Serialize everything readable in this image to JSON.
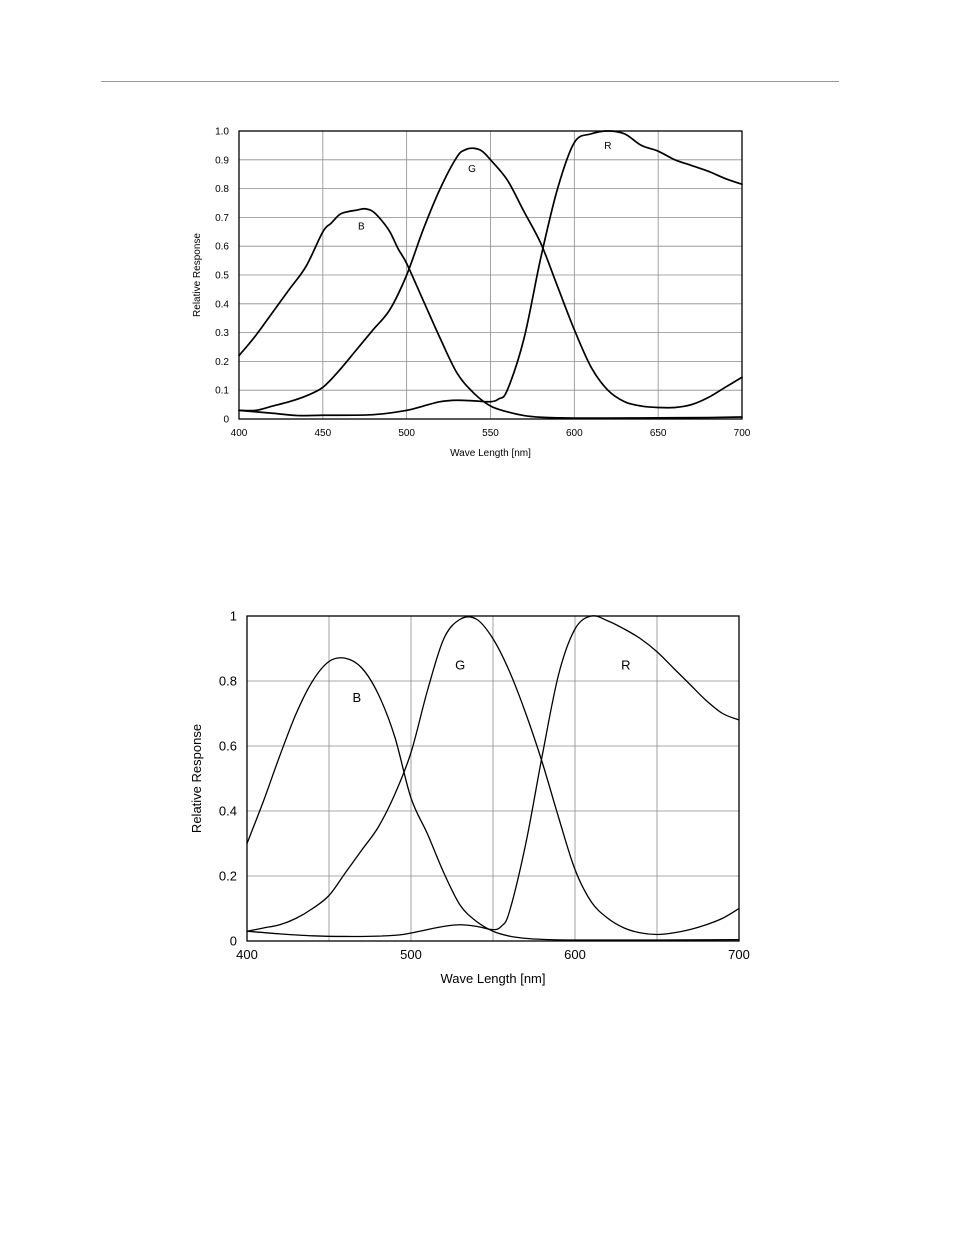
{
  "chart_data": [
    {
      "type": "line",
      "title": "",
      "xlabel": "Wave Length [nm]",
      "ylabel": "Relative Response",
      "xlim": [
        400,
        700
      ],
      "ylim": [
        0,
        1.0
      ],
      "xticks": [
        400,
        450,
        500,
        550,
        600,
        650,
        700
      ],
      "xtick_labels": [
        "400",
        "450",
        "500",
        "550",
        "600",
        "650",
        "700"
      ],
      "yticks": [
        0,
        0.1,
        0.2,
        0.3,
        0.4,
        0.5,
        0.6,
        0.7,
        0.8,
        0.9,
        1.0
      ],
      "ytick_labels": [
        "0",
        "0.1",
        "0.2",
        "0.3",
        "0.4",
        "0.5",
        "0.6",
        "0.7",
        "0.8",
        "0.9",
        "1.0"
      ],
      "grid": true,
      "series": [
        {
          "name": "B",
          "label_at": [
            473,
            0.67
          ],
          "x": [
            400,
            410,
            420,
            430,
            440,
            450,
            455,
            460,
            465,
            470,
            475,
            480,
            485,
            490,
            495,
            500,
            510,
            520,
            530,
            540,
            550,
            560,
            570,
            580,
            590,
            600,
            620,
            650,
            680,
            700
          ],
          "y": [
            0.22,
            0.29,
            0.37,
            0.45,
            0.53,
            0.65,
            0.68,
            0.71,
            0.72,
            0.725,
            0.73,
            0.72,
            0.69,
            0.65,
            0.59,
            0.54,
            0.41,
            0.28,
            0.16,
            0.09,
            0.045,
            0.025,
            0.012,
            0.006,
            0.004,
            0.003,
            0.003,
            0.004,
            0.005,
            0.007
          ]
        },
        {
          "name": "G",
          "label_at": [
            539,
            0.87
          ],
          "x": [
            400,
            410,
            420,
            430,
            440,
            450,
            460,
            470,
            480,
            490,
            500,
            510,
            520,
            530,
            535,
            540,
            545,
            550,
            560,
            570,
            580,
            590,
            600,
            610,
            620,
            630,
            640,
            650,
            660,
            670,
            680,
            690,
            700
          ],
          "y": [
            0.03,
            0.03,
            0.045,
            0.06,
            0.08,
            0.11,
            0.17,
            0.24,
            0.31,
            0.38,
            0.5,
            0.66,
            0.8,
            0.91,
            0.935,
            0.94,
            0.93,
            0.9,
            0.83,
            0.72,
            0.61,
            0.46,
            0.31,
            0.18,
            0.1,
            0.06,
            0.045,
            0.04,
            0.04,
            0.05,
            0.075,
            0.11,
            0.145
          ]
        },
        {
          "name": "R",
          "label_at": [
            620,
            0.95
          ],
          "x": [
            400,
            420,
            435,
            450,
            480,
            500,
            510,
            520,
            530,
            540,
            550,
            555,
            560,
            570,
            580,
            590,
            600,
            610,
            620,
            630,
            640,
            650,
            660,
            670,
            680,
            690,
            700
          ],
          "y": [
            0.03,
            0.02,
            0.012,
            0.013,
            0.015,
            0.03,
            0.045,
            0.06,
            0.065,
            0.063,
            0.06,
            0.07,
            0.1,
            0.28,
            0.56,
            0.8,
            0.96,
            0.99,
            1.0,
            0.99,
            0.95,
            0.93,
            0.9,
            0.88,
            0.86,
            0.835,
            0.815
          ]
        }
      ]
    },
    {
      "type": "line",
      "title": "",
      "xlabel": "Wave Length [nm]",
      "ylabel": "Relative Response",
      "xlim": [
        400,
        700
      ],
      "ylim": [
        0,
        1
      ],
      "xticks": [
        400,
        500,
        600,
        700
      ],
      "xtick_labels": [
        "400",
        "500",
        "600",
        "700"
      ],
      "xgrid": [
        400,
        450,
        500,
        550,
        600,
        650,
        700
      ],
      "yticks": [
        0,
        0.2,
        0.4,
        0.6,
        0.8,
        1
      ],
      "ytick_labels": [
        "0",
        "0.2",
        "0.4",
        "0.6",
        "0.8",
        "1"
      ],
      "ygrid": [
        0,
        0.2,
        0.4,
        0.6,
        0.8,
        1
      ],
      "grid": true,
      "series": [
        {
          "name": "B",
          "label_at": [
            467,
            0.75
          ],
          "x": [
            400,
            410,
            420,
            430,
            440,
            450,
            460,
            470,
            480,
            490,
            500,
            510,
            520,
            530,
            540,
            550,
            560,
            570,
            580,
            600,
            650,
            700
          ],
          "y": [
            0.3,
            0.43,
            0.57,
            0.7,
            0.8,
            0.86,
            0.87,
            0.84,
            0.76,
            0.63,
            0.44,
            0.33,
            0.21,
            0.11,
            0.06,
            0.03,
            0.015,
            0.008,
            0.005,
            0.003,
            0.003,
            0.004
          ]
        },
        {
          "name": "G",
          "label_at": [
            530,
            0.85
          ],
          "x": [
            400,
            410,
            420,
            430,
            440,
            450,
            460,
            470,
            480,
            490,
            500,
            510,
            520,
            530,
            540,
            550,
            560,
            570,
            580,
            590,
            600,
            610,
            620,
            630,
            640,
            650,
            660,
            670,
            680,
            690,
            700
          ],
          "y": [
            0.03,
            0.04,
            0.05,
            0.07,
            0.1,
            0.14,
            0.21,
            0.28,
            0.35,
            0.45,
            0.58,
            0.77,
            0.93,
            0.99,
            0.99,
            0.93,
            0.83,
            0.7,
            0.55,
            0.38,
            0.22,
            0.12,
            0.07,
            0.04,
            0.025,
            0.02,
            0.025,
            0.035,
            0.05,
            0.07,
            0.1
          ]
        },
        {
          "name": "R",
          "label_at": [
            631,
            0.85
          ],
          "x": [
            400,
            420,
            440,
            460,
            480,
            495,
            510,
            520,
            530,
            540,
            550,
            555,
            560,
            570,
            580,
            590,
            600,
            610,
            620,
            630,
            640,
            650,
            660,
            670,
            680,
            690,
            700
          ],
          "y": [
            0.03,
            0.022,
            0.016,
            0.014,
            0.015,
            0.02,
            0.035,
            0.045,
            0.05,
            0.045,
            0.035,
            0.045,
            0.09,
            0.3,
            0.57,
            0.82,
            0.96,
            1.0,
            0.985,
            0.96,
            0.93,
            0.89,
            0.84,
            0.79,
            0.74,
            0.7,
            0.68
          ]
        }
      ]
    }
  ]
}
